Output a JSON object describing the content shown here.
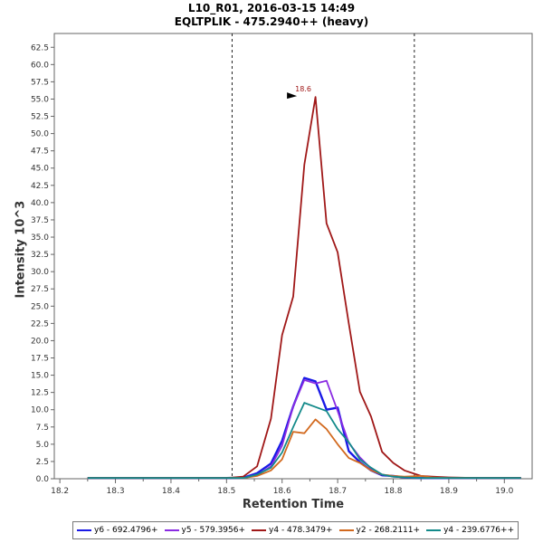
{
  "chart_data": {
    "type": "line",
    "title": "L10_R01, 2016-03-15 14:49",
    "subtitle": "EQLTPLIK - 475.2940++ (heavy)",
    "xlabel": "Retention Time",
    "ylabel": "Intensity 10^3",
    "xlim": [
      18.19,
      19.05
    ],
    "ylim": [
      0,
      64.5
    ],
    "x_ticks": [
      "18.2",
      "18.3",
      "18.4",
      "18.5",
      "18.6",
      "18.7",
      "18.8",
      "18.9",
      "19.0"
    ],
    "x_minor_ticks": [
      18.25,
      18.35,
      18.45,
      18.55,
      18.65,
      18.75,
      18.85,
      18.95
    ],
    "y_ticks": [
      "0.0",
      "2.5",
      "5.0",
      "7.5",
      "10.0",
      "12.5",
      "15.0",
      "17.5",
      "20.0",
      "22.5",
      "25.0",
      "27.5",
      "30.0",
      "32.5",
      "35.0",
      "37.5",
      "40.0",
      "42.5",
      "45.0",
      "47.5",
      "50.0",
      "52.5",
      "55.0",
      "57.5",
      "60.0",
      "62.5"
    ],
    "grid": false,
    "vertical_markers": [
      18.51,
      18.838
    ],
    "peak_annotation": {
      "x": 18.63,
      "y": 55.3,
      "label": "18.6",
      "color": "#a01818"
    },
    "legend_position": "bottom",
    "series": [
      {
        "name": "y6 - 692.4796+",
        "color": "#1a1ae6",
        "width": 2.4,
        "points": [
          [
            18.25,
            0.1
          ],
          [
            18.3,
            0.1
          ],
          [
            18.35,
            0.1
          ],
          [
            18.4,
            0.1
          ],
          [
            18.45,
            0.1
          ],
          [
            18.5,
            0.1
          ],
          [
            18.53,
            0.15
          ],
          [
            18.555,
            0.8
          ],
          [
            18.58,
            2.2
          ],
          [
            18.6,
            5.5
          ],
          [
            18.62,
            10.5
          ],
          [
            18.64,
            14.6
          ],
          [
            18.66,
            14.1
          ],
          [
            18.68,
            10.0
          ],
          [
            18.7,
            10.3
          ],
          [
            18.72,
            4.0
          ],
          [
            18.74,
            2.4
          ],
          [
            18.76,
            1.2
          ],
          [
            18.78,
            0.5
          ],
          [
            18.8,
            0.4
          ],
          [
            18.82,
            0.2
          ],
          [
            18.85,
            0.1
          ],
          [
            18.9,
            0.1
          ],
          [
            18.95,
            0.1
          ],
          [
            19.0,
            0.1
          ],
          [
            19.03,
            0.1
          ]
        ]
      },
      {
        "name": "y5 - 579.3956+",
        "color": "#8a2be2",
        "width": 1.8,
        "points": [
          [
            18.25,
            0.1
          ],
          [
            18.3,
            0.1
          ],
          [
            18.35,
            0.1
          ],
          [
            18.4,
            0.1
          ],
          [
            18.45,
            0.1
          ],
          [
            18.5,
            0.1
          ],
          [
            18.53,
            0.1
          ],
          [
            18.555,
            0.5
          ],
          [
            18.58,
            1.8
          ],
          [
            18.6,
            4.8
          ],
          [
            18.62,
            10.5
          ],
          [
            18.64,
            14.3
          ],
          [
            18.66,
            13.8
          ],
          [
            18.68,
            14.2
          ],
          [
            18.7,
            9.8
          ],
          [
            18.72,
            5.2
          ],
          [
            18.74,
            3.1
          ],
          [
            18.76,
            1.5
          ],
          [
            18.78,
            0.6
          ],
          [
            18.8,
            0.3
          ],
          [
            18.82,
            0.2
          ],
          [
            18.85,
            0.1
          ],
          [
            18.9,
            0.1
          ],
          [
            18.95,
            0.1
          ],
          [
            19.0,
            0.1
          ],
          [
            19.03,
            0.1
          ]
        ]
      },
      {
        "name": "y4 - 478.3479+",
        "color": "#a01818",
        "width": 1.8,
        "points": [
          [
            18.25,
            0.1
          ],
          [
            18.3,
            0.1
          ],
          [
            18.35,
            0.1
          ],
          [
            18.4,
            0.1
          ],
          [
            18.45,
            0.1
          ],
          [
            18.5,
            0.1
          ],
          [
            18.53,
            0.3
          ],
          [
            18.555,
            1.8
          ],
          [
            18.58,
            8.7
          ],
          [
            18.6,
            20.8
          ],
          [
            18.62,
            26.4
          ],
          [
            18.64,
            45.5
          ],
          [
            18.66,
            55.3
          ],
          [
            18.68,
            37.0
          ],
          [
            18.7,
            32.8
          ],
          [
            18.72,
            22.5
          ],
          [
            18.74,
            12.6
          ],
          [
            18.76,
            9.0
          ],
          [
            18.78,
            3.9
          ],
          [
            18.8,
            2.3
          ],
          [
            18.82,
            1.2
          ],
          [
            18.85,
            0.4
          ],
          [
            18.87,
            0.3
          ],
          [
            18.9,
            0.2
          ],
          [
            18.95,
            0.1
          ],
          [
            19.0,
            0.1
          ],
          [
            19.03,
            0.1
          ]
        ]
      },
      {
        "name": "y2 - 268.2111+",
        "color": "#d2691e",
        "width": 1.8,
        "points": [
          [
            18.25,
            0.1
          ],
          [
            18.3,
            0.1
          ],
          [
            18.35,
            0.1
          ],
          [
            18.4,
            0.1
          ],
          [
            18.45,
            0.1
          ],
          [
            18.5,
            0.1
          ],
          [
            18.53,
            0.1
          ],
          [
            18.555,
            0.4
          ],
          [
            18.58,
            1.2
          ],
          [
            18.6,
            2.8
          ],
          [
            18.62,
            6.8
          ],
          [
            18.64,
            6.6
          ],
          [
            18.66,
            8.6
          ],
          [
            18.68,
            7.2
          ],
          [
            18.7,
            5.0
          ],
          [
            18.72,
            3.0
          ],
          [
            18.74,
            2.3
          ],
          [
            18.76,
            1.2
          ],
          [
            18.78,
            0.6
          ],
          [
            18.8,
            0.4
          ],
          [
            18.82,
            0.3
          ],
          [
            18.85,
            0.4
          ],
          [
            18.87,
            0.2
          ],
          [
            18.9,
            0.1
          ],
          [
            18.95,
            0.1
          ],
          [
            19.0,
            0.1
          ],
          [
            19.03,
            0.1
          ]
        ]
      },
      {
        "name": "y4 - 239.6776++",
        "color": "#138a8a",
        "width": 1.8,
        "points": [
          [
            18.25,
            0.1
          ],
          [
            18.3,
            0.1
          ],
          [
            18.35,
            0.1
          ],
          [
            18.4,
            0.1
          ],
          [
            18.45,
            0.1
          ],
          [
            18.5,
            0.1
          ],
          [
            18.53,
            0.1
          ],
          [
            18.555,
            0.6
          ],
          [
            18.58,
            1.6
          ],
          [
            18.6,
            3.8
          ],
          [
            18.62,
            7.5
          ],
          [
            18.64,
            11.0
          ],
          [
            18.66,
            10.4
          ],
          [
            18.68,
            9.8
          ],
          [
            18.7,
            7.2
          ],
          [
            18.72,
            5.3
          ],
          [
            18.74,
            2.8
          ],
          [
            18.76,
            1.6
          ],
          [
            18.78,
            0.6
          ],
          [
            18.8,
            0.3
          ],
          [
            18.82,
            0.2
          ],
          [
            18.85,
            0.1
          ],
          [
            18.9,
            0.1
          ],
          [
            18.95,
            0.1
          ],
          [
            19.0,
            0.1
          ],
          [
            19.03,
            0.1
          ]
        ]
      }
    ]
  }
}
